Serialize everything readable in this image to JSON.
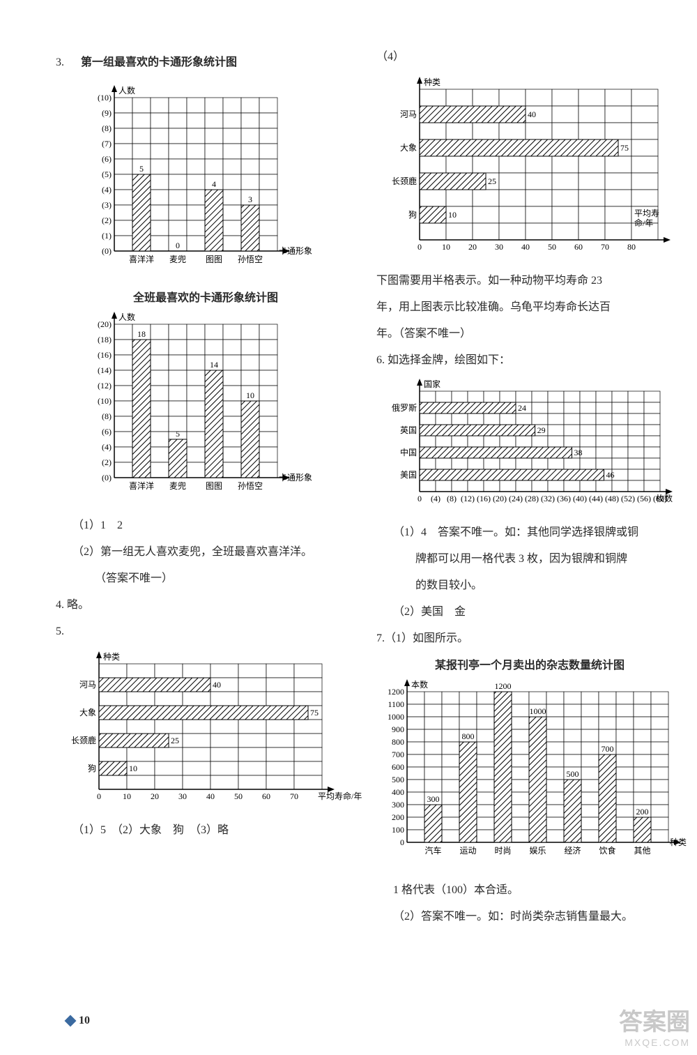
{
  "page_number": "10",
  "left": {
    "q3_num": "3.",
    "chart1": {
      "type": "bar",
      "title": "第一组最喜欢的卡通形象统计图",
      "y_axis_label": "人数",
      "x_axis_label": "卡通形象",
      "y_ticks": [
        "(0)",
        "(1)",
        "(2)",
        "(3)",
        "(4)",
        "(5)",
        "(6)",
        "(7)",
        "(8)",
        "(9)",
        "(10)"
      ],
      "categories": [
        "喜洋洋",
        "麦兜",
        "图图",
        "孙悟空"
      ],
      "category_x": [
        1.5,
        3.5,
        5.5,
        7.5
      ],
      "values": [
        5,
        0,
        4,
        3
      ],
      "value_labels": [
        "5",
        "0",
        "4",
        "3"
      ],
      "grid_cols": 9,
      "grid_rows": 10,
      "bar_width": 1
    },
    "chart2": {
      "type": "bar",
      "title": "全班最喜欢的卡通形象统计图",
      "y_axis_label": "人数",
      "x_axis_label": "卡通形象",
      "y_ticks": [
        "(0)",
        "(2)",
        "(4)",
        "(6)",
        "(8)",
        "(10)",
        "(12)",
        "(14)",
        "(16)",
        "(18)",
        "(20)"
      ],
      "categories": [
        "喜洋洋",
        "麦兜",
        "图图",
        "孙悟空"
      ],
      "category_x": [
        1.5,
        3.5,
        5.5,
        7.5
      ],
      "values": [
        9,
        2.5,
        7,
        5
      ],
      "value_labels": [
        "18",
        "5",
        "14",
        "10"
      ],
      "grid_cols": 9,
      "grid_rows": 10,
      "bar_width": 1
    },
    "a1": "（1）1　2",
    "a2": "（2）第一组无人喜欢麦兜，全班最喜欢喜洋洋。",
    "a2b": "（答案不唯一）",
    "q4": "4. 略。",
    "q5": "5.",
    "chart3": {
      "type": "hbar",
      "y_axis_label": "种类",
      "x_axis_label": "平均寿命/年",
      "x_ticks": [
        "0",
        "10",
        "20",
        "30",
        "40",
        "50",
        "60",
        "70"
      ],
      "categories": [
        "河马",
        "大象",
        "长颈鹿",
        "狗"
      ],
      "category_y": [
        1.5,
        3.5,
        5.5,
        7.5
      ],
      "values": [
        4,
        7.5,
        2.5,
        1
      ],
      "value_labels": [
        "40",
        "75",
        "25",
        "10"
      ],
      "grid_cols": 8,
      "grid_rows": 9,
      "bar_width": 1
    },
    "a5": "（1）5　（2）大象　狗　（3）略"
  },
  "right": {
    "q4_num": "（4）",
    "chart4": {
      "type": "hbar",
      "y_axis_label": "种类",
      "x_axis_label_line1": "平均寿",
      "x_axis_label_line2": "命/年",
      "x_ticks": [
        "0",
        "10",
        "20",
        "30",
        "40",
        "50",
        "60",
        "70",
        "80"
      ],
      "categories": [
        "河马",
        "大象",
        "长颈鹿",
        "狗"
      ],
      "category_y": [
        1.5,
        3.5,
        5.5,
        7.5
      ],
      "values": [
        4,
        7.5,
        2.5,
        1
      ],
      "value_labels": [
        "40",
        "75",
        "25",
        "10"
      ],
      "grid_cols": 9,
      "grid_rows": 9,
      "bar_width": 1
    },
    "text4a": "下图需要用半格表示。如一种动物平均寿命 23",
    "text4b": "年，用上图表示比较准确。乌龟平均寿命长达百",
    "text4c": "年。（答案不唯一）",
    "q6": "6. 如选择金牌，绘图如下：",
    "chart5": {
      "type": "hbar",
      "y_axis_label": "国家",
      "x_axis_label": "枚数",
      "x_ticks": [
        "0",
        "(4)",
        "(8)",
        "(12)",
        "(16)",
        "(20)",
        "(24)",
        "(28)",
        "(32)",
        "(36)",
        "(40)",
        "(44)",
        "(48)",
        "(52)",
        "(56)",
        "(60)"
      ],
      "categories": [
        "俄罗斯",
        "英国",
        "中国",
        "美国"
      ],
      "category_y": [
        1.5,
        3.5,
        5.5,
        7.5
      ],
      "values": [
        6,
        7.2,
        9.5,
        11.5
      ],
      "value_labels": [
        "24",
        "29",
        "38",
        "46"
      ],
      "grid_cols": 15,
      "grid_rows": 9,
      "bar_width": 1
    },
    "a6_1a": "（1）4　答案不唯一。如：其他同学选择银牌或铜",
    "a6_1b": "牌都可以用一格代表 3 枚，因为银牌和铜牌",
    "a6_1c": "的数目较小。",
    "a6_2": "（2）美国　金",
    "q7": "7.（1）如图所示。",
    "chart6": {
      "type": "bar",
      "title": "某报刊亭一个月卖出的杂志数量统计图",
      "y_axis_label": "本数",
      "x_axis_label": "种类",
      "y_ticks": [
        "0",
        "100",
        "200",
        "300",
        "400",
        "500",
        "600",
        "700",
        "800",
        "900",
        "1000",
        "1100",
        "1200"
      ],
      "categories": [
        "汽车",
        "运动",
        "时尚",
        "娱乐",
        "经济",
        "饮食",
        "其他"
      ],
      "category_x": [
        1.5,
        3.5,
        5.5,
        7.5,
        9.5,
        11.5,
        13.5
      ],
      "values": [
        3,
        8,
        12,
        10,
        5,
        7,
        2
      ],
      "value_labels": [
        "300",
        "800",
        "1200",
        "1000",
        "500",
        "700",
        "200"
      ],
      "grid_cols": 15,
      "grid_rows": 12,
      "bar_width": 1
    },
    "a7a": "1 格代表（100）本合适。",
    "a7b": "（2）答案不唯一。如：时尚类杂志销售量最大。"
  },
  "watermark_big": "答案圈",
  "watermark_small": "MXQE.COM"
}
